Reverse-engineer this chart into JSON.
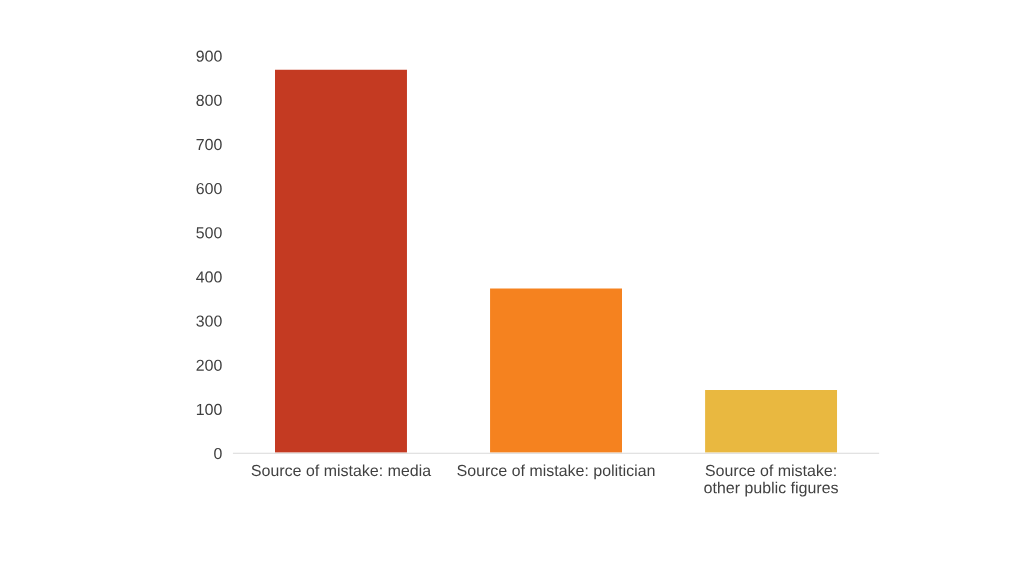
{
  "chart_data": {
    "type": "bar",
    "categories": [
      "Source of mistake: media",
      "Source of mistake: politician",
      "Source of mistake:\nother public figures"
    ],
    "values": [
      870,
      375,
      145
    ],
    "colors": [
      "#c43a22",
      "#f5821f",
      "#e9b840"
    ],
    "ylim": [
      0,
      900
    ],
    "yticks": [
      0,
      100,
      200,
      300,
      400,
      500,
      600,
      700,
      800,
      900
    ],
    "grid": false
  }
}
